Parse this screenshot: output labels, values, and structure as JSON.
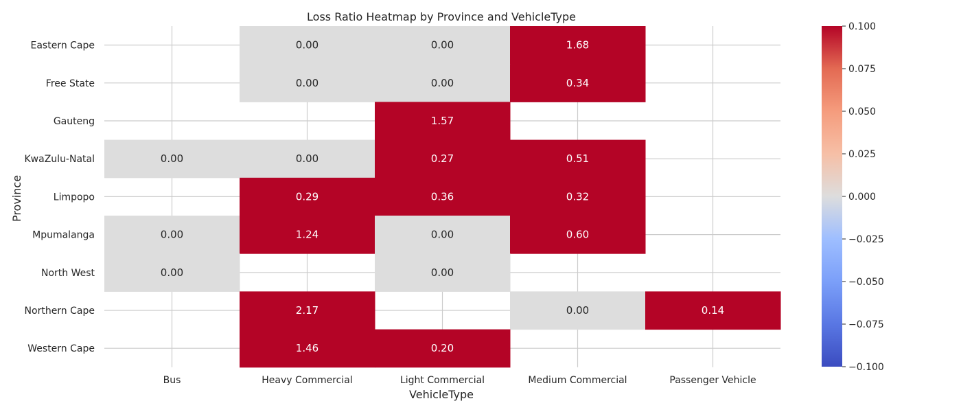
{
  "chart_data": {
    "type": "heatmap",
    "title": "Loss Ratio Heatmap by Province and VehicleType",
    "xlabel": "VehicleType",
    "ylabel": "Province",
    "x_categories": [
      "Bus",
      "Heavy Commercial",
      "Light Commercial",
      "Medium Commercial",
      "Passenger Vehicle"
    ],
    "y_categories": [
      "Eastern Cape",
      "Free State",
      "Gauteng",
      "KwaZulu-Natal",
      "Limpopo",
      "Mpumalanga",
      "North West",
      "Northern Cape",
      "Western Cape"
    ],
    "values": [
      [
        null,
        0.0,
        0.0,
        1.68,
        null
      ],
      [
        null,
        0.0,
        0.0,
        0.34,
        null
      ],
      [
        null,
        null,
        1.57,
        null,
        null
      ],
      [
        0.0,
        0.0,
        0.27,
        0.51,
        null
      ],
      [
        null,
        0.29,
        0.36,
        0.32,
        null
      ],
      [
        0.0,
        1.24,
        0.0,
        0.6,
        null
      ],
      [
        0.0,
        null,
        0.0,
        null,
        null
      ],
      [
        null,
        2.17,
        null,
        0.0,
        0.14
      ],
      [
        null,
        1.46,
        0.2,
        null,
        null
      ]
    ],
    "value_labels": [
      [
        "",
        "0.00",
        "0.00",
        "1.68",
        ""
      ],
      [
        "",
        "0.00",
        "0.00",
        "0.34",
        ""
      ],
      [
        "",
        "",
        "1.57",
        "",
        ""
      ],
      [
        "0.00",
        "0.00",
        "0.27",
        "0.51",
        ""
      ],
      [
        "",
        "0.29",
        "0.36",
        "0.32",
        ""
      ],
      [
        "0.00",
        "1.24",
        "0.00",
        "0.60",
        ""
      ],
      [
        "0.00",
        "",
        "0.00",
        "",
        ""
      ],
      [
        "",
        "2.17",
        "",
        "0.00",
        "0.14"
      ],
      [
        "",
        "1.46",
        "0.20",
        "",
        ""
      ]
    ],
    "colormap": "coolwarm",
    "vmin": -0.1,
    "vmax": 0.1,
    "colorbar_ticks": [
      "0.100",
      "0.075",
      "0.050",
      "0.025",
      "0.000",
      "−0.025",
      "−0.050",
      "−0.075",
      "−0.100"
    ],
    "colorbar_tick_values": [
      0.1,
      0.075,
      0.05,
      0.025,
      0.0,
      -0.025,
      -0.05,
      -0.075,
      -0.1
    ],
    "colors": {
      "high": "#b40426",
      "mid": "#dddddd",
      "low": "#3b4cc0",
      "grid": "#cccccc",
      "text": "#262626"
    },
    "grid": true
  }
}
